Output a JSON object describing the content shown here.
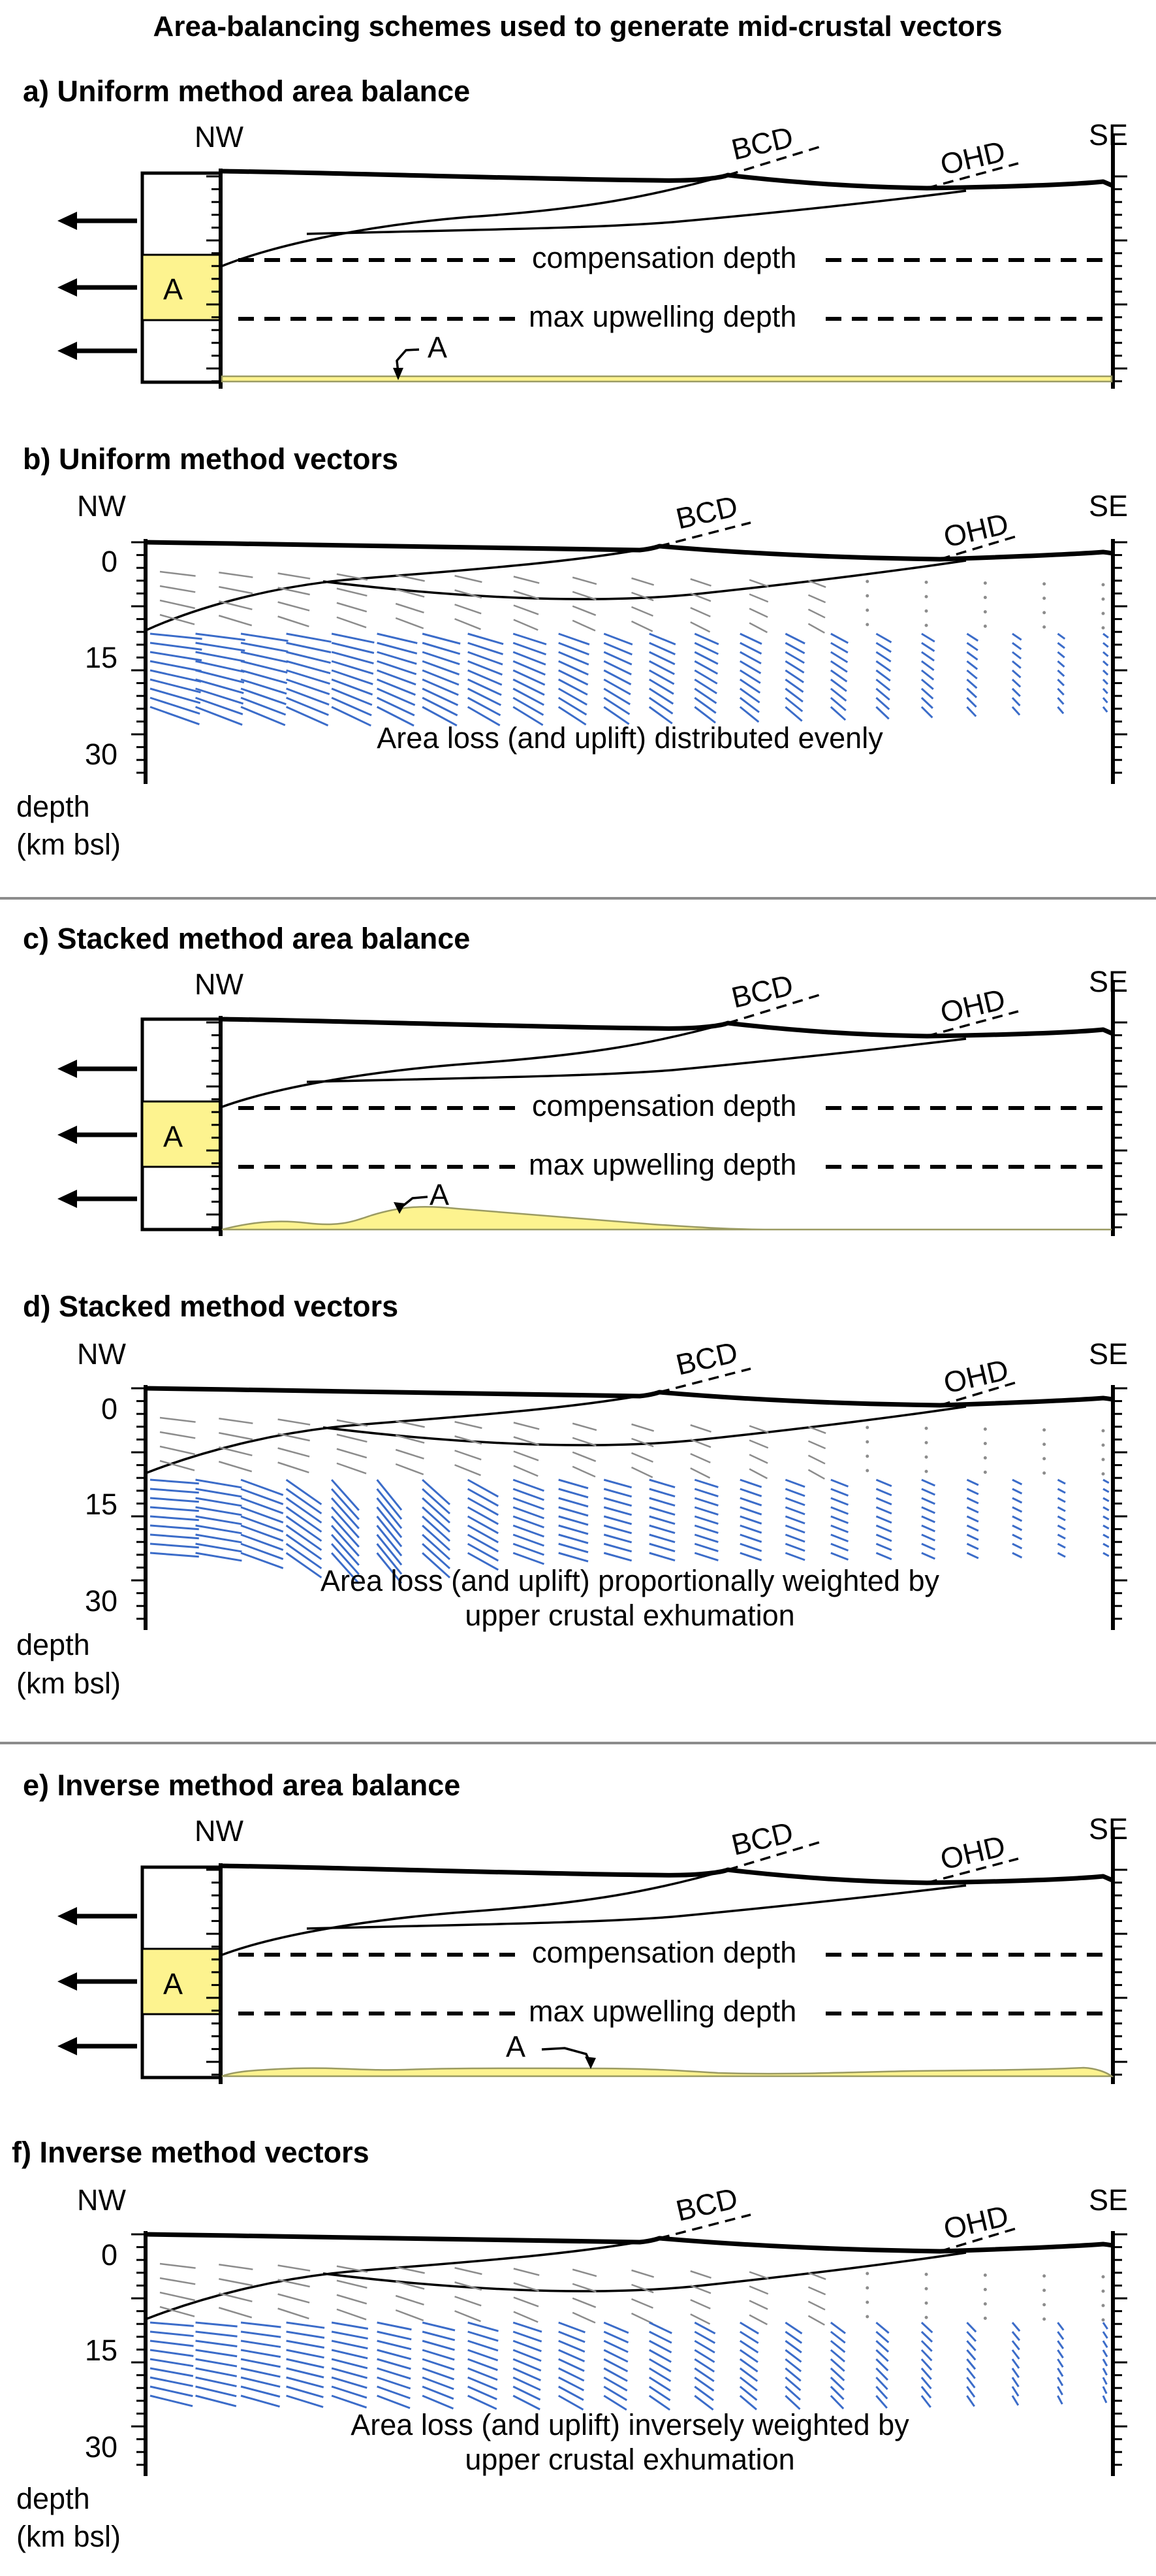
{
  "title": "Area-balancing schemes used to generate mid-crustal vectors",
  "labels": {
    "nw": "NW",
    "se": "SE",
    "bcd": "BCD",
    "ohd": "OHD",
    "area": "A",
    "compensation_depth": "compensation depth",
    "max_upwelling_depth": "max upwelling depth",
    "depth_axis_line1": "depth",
    "depth_axis_line2": "(km bsl)",
    "depth_ticks": [
      "0",
      "15",
      "30"
    ]
  },
  "panels": {
    "a": {
      "title": "a) Uniform method area balance"
    },
    "b": {
      "title": "b) Uniform method vectors",
      "caption": [
        "Area loss (and uplift) distributed evenly"
      ]
    },
    "c": {
      "title": "c) Stacked method area balance"
    },
    "d": {
      "title": "d) Stacked method vectors",
      "caption": [
        "Area loss (and uplift) proportionally weighted by",
        "upper crustal exhumation"
      ]
    },
    "e": {
      "title": "e) Inverse method area balance"
    },
    "f": {
      "title": "f) Inverse method vectors",
      "caption": [
        "Area loss (and uplift) inversely weighted by",
        "upper crustal exhumation"
      ]
    }
  },
  "colors": {
    "upper_vectors": "#8c8c8c",
    "mid_vectors": "#3b6cc9",
    "area_fill": "#fdf38f",
    "separator": "#8c8c8c"
  }
}
